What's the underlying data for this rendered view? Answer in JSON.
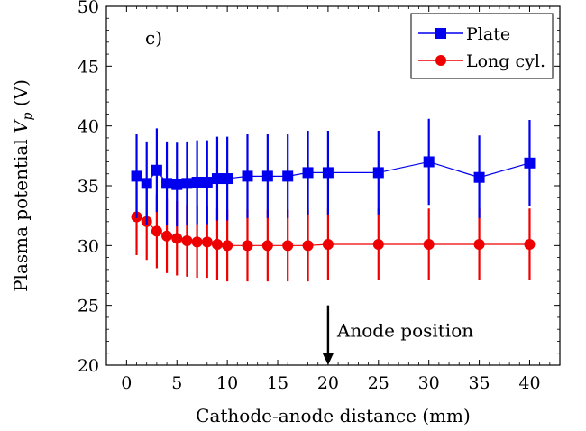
{
  "chart_data": {
    "type": "line",
    "panel_label": "c)",
    "xlabel": "Cathode-anode distance (mm)",
    "ylabel": "Plasma potential V_p (V)",
    "ylabel_main": "Plasma potential ",
    "ylabel_symbol": "V",
    "ylabel_subscript": "p",
    "ylabel_unit": " (V)",
    "xlim": [
      -2,
      43
    ],
    "ylim": [
      20,
      50
    ],
    "xticks": [
      0,
      5,
      10,
      15,
      20,
      25,
      30,
      35,
      40
    ],
    "yticks": [
      20,
      25,
      30,
      35,
      40,
      45,
      50
    ],
    "xtick_labels": [
      "0",
      "5",
      "10",
      "15",
      "20",
      "25",
      "30",
      "35",
      "40"
    ],
    "ytick_labels": [
      "20",
      "25",
      "30",
      "35",
      "40",
      "45",
      "50"
    ],
    "grid": false,
    "legend_position": "top-right",
    "annotation": {
      "text": "Anode position",
      "x": 20,
      "y_from": 25,
      "y_to": 20
    },
    "series": [
      {
        "name": "Plate",
        "color": "#0000ee",
        "marker": "square",
        "x": [
          1,
          2,
          3,
          4,
          5,
          6,
          7,
          8,
          9,
          10,
          12,
          14,
          16,
          18,
          20,
          25,
          30,
          35,
          40
        ],
        "y": [
          35.8,
          35.2,
          36.3,
          35.2,
          35.1,
          35.2,
          35.3,
          35.3,
          35.6,
          35.6,
          35.8,
          35.8,
          35.8,
          36.1,
          36.1,
          36.1,
          37.0,
          35.7,
          36.9
        ],
        "err_low": [
          32.3,
          31.7,
          32.8,
          31.7,
          31.6,
          31.7,
          31.8,
          31.8,
          32.1,
          32.1,
          32.3,
          32.3,
          32.3,
          32.6,
          32.6,
          32.6,
          33.4,
          32.3,
          33.3
        ],
        "err_high": [
          39.3,
          38.7,
          39.8,
          38.7,
          38.6,
          38.7,
          38.8,
          38.8,
          39.1,
          39.1,
          39.3,
          39.3,
          39.3,
          39.6,
          39.6,
          39.6,
          40.6,
          39.2,
          40.5
        ]
      },
      {
        "name": "Long cyl.",
        "color": "#ee0000",
        "marker": "circle",
        "x": [
          1,
          2,
          3,
          4,
          5,
          6,
          7,
          8,
          9,
          10,
          12,
          14,
          16,
          18,
          20,
          25,
          30,
          35,
          40
        ],
        "y": [
          32.4,
          32.0,
          31.2,
          30.8,
          30.6,
          30.4,
          30.3,
          30.3,
          30.1,
          30.0,
          30.0,
          30.0,
          30.0,
          30.0,
          30.1,
          30.1,
          30.1,
          30.1,
          30.1
        ],
        "err_low": [
          29.2,
          28.8,
          28.1,
          27.7,
          27.5,
          27.4,
          27.3,
          27.3,
          27.1,
          27.0,
          27.0,
          27.0,
          27.0,
          27.0,
          27.1,
          27.1,
          27.1,
          27.1,
          27.1
        ],
        "err_high": [
          35.6,
          35.2,
          34.3,
          33.9,
          33.7,
          33.4,
          33.3,
          33.3,
          33.1,
          33.0,
          33.0,
          33.0,
          33.0,
          33.0,
          33.1,
          33.1,
          33.1,
          33.1,
          33.1
        ]
      }
    ]
  }
}
